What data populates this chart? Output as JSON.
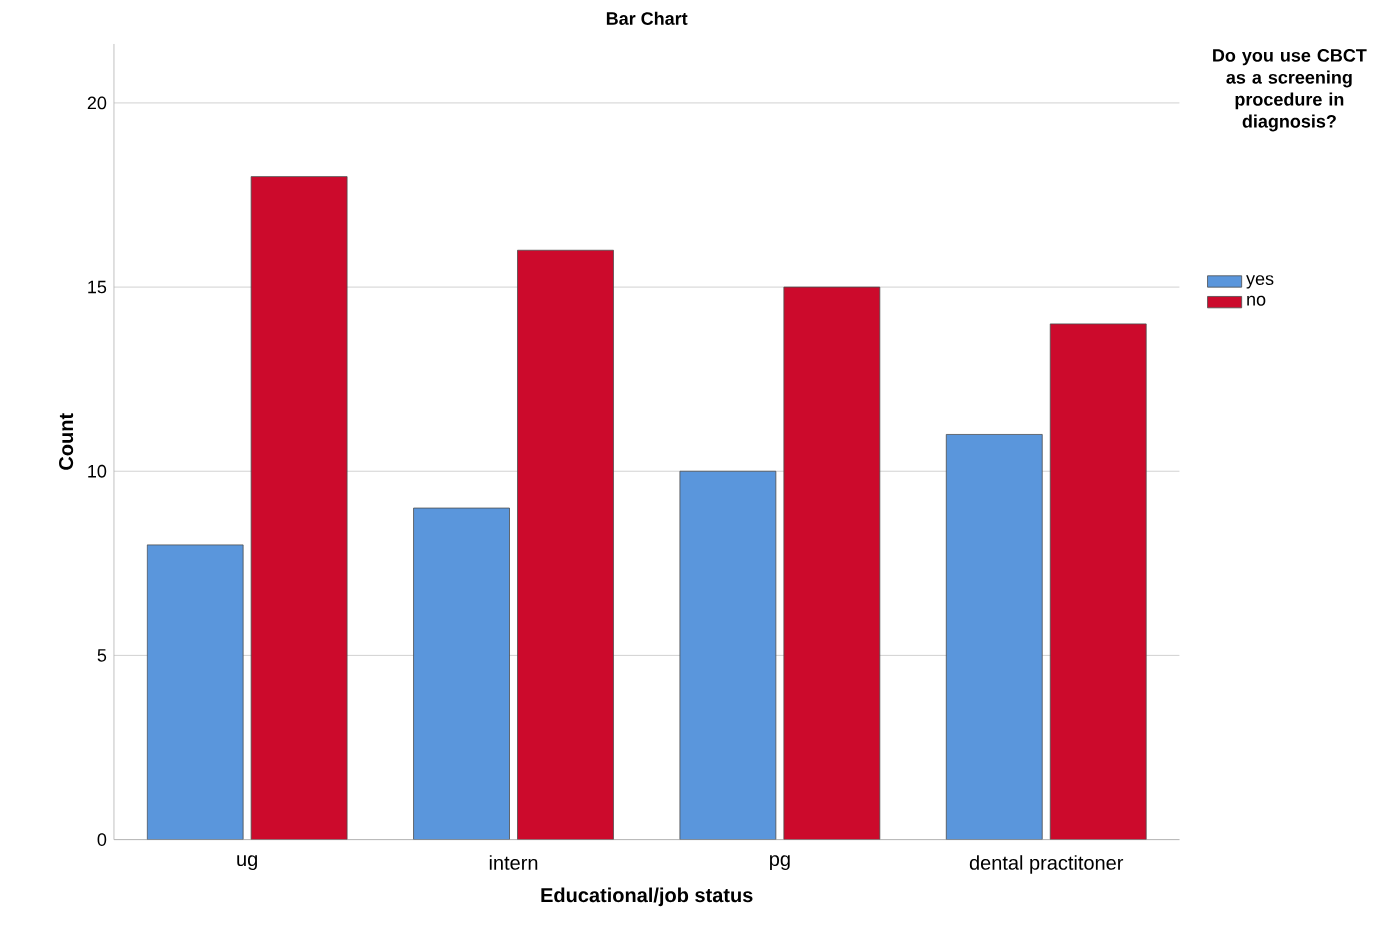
{
  "chart_data": {
    "type": "bar",
    "title": "Bar Chart",
    "xlabel": "Educational/job status",
    "ylabel": "Count",
    "legend_title": "Do you use CBCT as a screening procedure in diagnosis?",
    "categories": [
      "ug",
      "intern",
      "pg",
      "dental practitoner"
    ],
    "series": [
      {
        "name": "yes",
        "color": "#5a96dc",
        "values": [
          8,
          9,
          10,
          11
        ]
      },
      {
        "name": "no",
        "color": "#cc0a2c",
        "values": [
          18,
          16,
          15,
          14
        ]
      }
    ],
    "ylim": [
      0,
      21.6
    ],
    "yticks": [
      0,
      5,
      10,
      15,
      20
    ],
    "grid": "y",
    "legend": "right"
  }
}
